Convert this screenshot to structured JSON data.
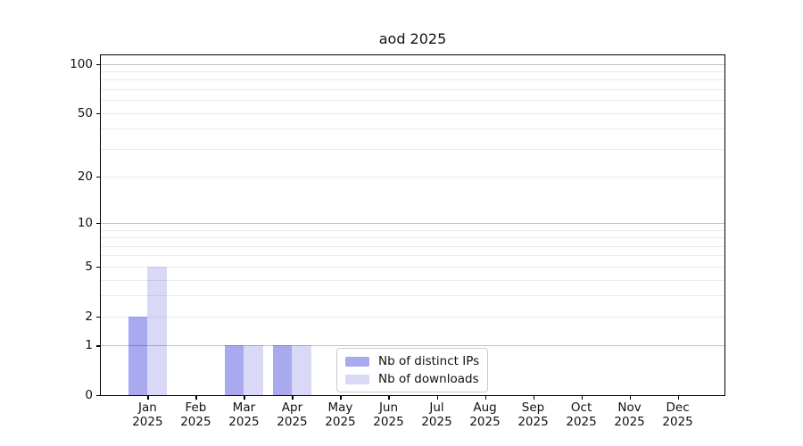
{
  "figure": {
    "background": "#ffffff"
  },
  "chart_data": {
    "type": "bar",
    "title": "aod 2025",
    "categories": [
      "Jan",
      "Feb",
      "Mar",
      "Apr",
      "May",
      "Jun",
      "Jul",
      "Aug",
      "Sep",
      "Oct",
      "Nov",
      "Dec"
    ],
    "xtick_year": "2025",
    "series": [
      {
        "key": "distinct-ips",
        "name": "Nb of distinct IPs",
        "color": "#a9a9f0",
        "values": [
          2,
          0,
          1,
          1,
          0,
          0,
          0,
          0,
          0,
          0,
          0,
          0
        ]
      },
      {
        "key": "downloads",
        "name": "Nb of downloads",
        "color": "#d9d9f7",
        "values": [
          5,
          0,
          1,
          1,
          0,
          0,
          0,
          0,
          0,
          0,
          0,
          0
        ]
      }
    ],
    "yscale": "log1p",
    "yticks": [
      0,
      1,
      2,
      5,
      10,
      20,
      50,
      100
    ],
    "ylim": [
      0,
      113
    ],
    "xlim": [
      -0.97,
      11.97
    ],
    "bar_width": 0.4,
    "grid": {
      "major": [
        1,
        10,
        100
      ],
      "minor": [
        2,
        3,
        4,
        5,
        6,
        7,
        8,
        9,
        20,
        30,
        40,
        50,
        60,
        70,
        80,
        90
      ]
    },
    "legend": {
      "position": "inside-lower-center",
      "entries": [
        "Nb of distinct IPs",
        "Nb of downloads"
      ]
    }
  }
}
